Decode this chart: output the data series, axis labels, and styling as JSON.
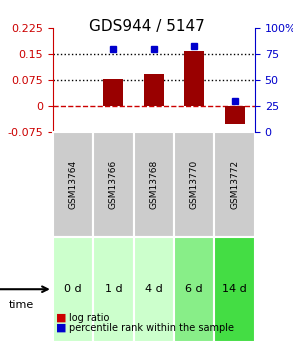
{
  "title": "GDS944 / 5147",
  "samples": [
    "GSM13764",
    "GSM13766",
    "GSM13768",
    "GSM13770",
    "GSM13772"
  ],
  "time_labels": [
    "0 d",
    "1 d",
    "4 d",
    "6 d",
    "14 d"
  ],
  "log_ratios": [
    0.0,
    0.079,
    0.093,
    0.157,
    -0.05
  ],
  "percentile_ranks": [
    null,
    80,
    80,
    82,
    30
  ],
  "ylim": [
    -0.075,
    0.225
  ],
  "y_left_ticks": [
    -0.075,
    0,
    0.075,
    0.15,
    0.225
  ],
  "y_right_ticks": [
    0,
    25,
    50,
    75,
    100
  ],
  "hlines": [
    0.075,
    0.15
  ],
  "zero_line": 0,
  "bar_color": "#990000",
  "dot_color": "#0000cc",
  "bar_width": 0.5,
  "grid_color": "#aaaaaa",
  "title_fontsize": 11,
  "tick_fontsize": 8,
  "label_fontsize": 8,
  "gsm_bg": "#cccccc",
  "time_bg_colors": [
    "#ccffcc",
    "#ccffcc",
    "#ccffcc",
    "#88ee88",
    "#44dd44"
  ],
  "legend_log_color": "#cc0000",
  "legend_pct_color": "#0000cc",
  "right_axis_color": "#0000cc",
  "left_axis_color": "#cc0000",
  "zero_line_color": "#cc0000",
  "dotted_line_color": "black"
}
